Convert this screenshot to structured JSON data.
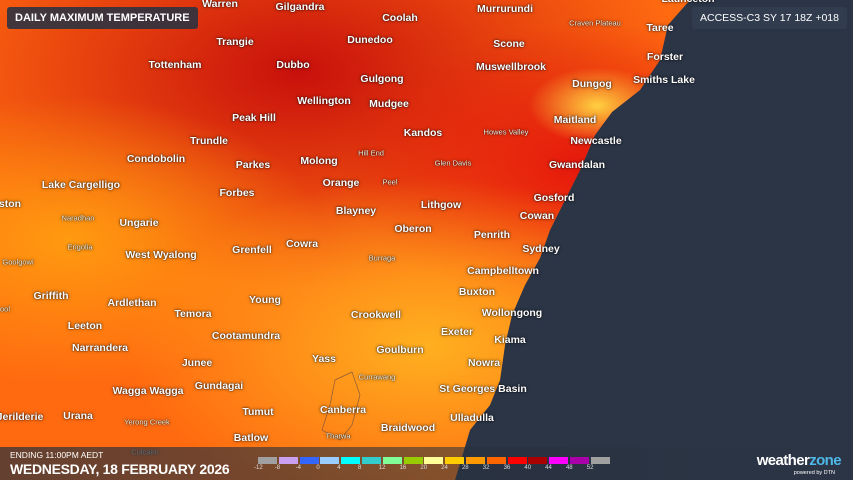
{
  "title": "DAILY MAXIMUM TEMPERATURE",
  "model_run": "ACCESS-C3 SY 17 18Z +018",
  "footer": {
    "ending": "ENDING 11:00PM AEDT",
    "date": "WEDNESDAY, 18 FEBRUARY 2026",
    "brand_main": "weather",
    "brand_accent": "zone",
    "brand_powered": "powered by DTN"
  },
  "legend": {
    "unit": "°C",
    "labels": [
      "-12",
      "-8",
      "-4",
      "0",
      "4",
      "8",
      "12",
      "16",
      "20",
      "24",
      "28",
      "32",
      "36",
      "40",
      "44",
      "48",
      "52"
    ],
    "colors": [
      "#a0a0a0",
      "#c9a0f0",
      "#3366ff",
      "#99ccff",
      "#00ffff",
      "#33cccc",
      "#80ff99",
      "#99cc00",
      "#ffff99",
      "#ffcc00",
      "#ff9900",
      "#ff6600",
      "#ff0000",
      "#aa0000",
      "#ff00ff",
      "#aa00aa",
      "#a0a0a0"
    ]
  },
  "colors": {
    "ocean": "#2b3546",
    "land_hot": "#e8200c",
    "land_warm": "#ff8a10"
  },
  "places": [
    "Warren",
    "Gilgandra",
    "Coolah",
    "Murrurundi",
    "Craven Plateau",
    "Taree",
    "Launceton",
    "Trangie",
    "Dunedoo",
    "Scone",
    "Forster",
    "Tottenham",
    "Dubbo",
    "Gulgong",
    "Muswellbrook",
    "Dungog",
    "Smiths Lake",
    "Wellington",
    "Mudgee",
    "Peak Hill",
    "Maitland",
    "Kandos",
    "Howes Valley",
    "Newcastle",
    "Trundle",
    "Hill End",
    "Glen Davis",
    "Condobolin",
    "Parkes",
    "Molong",
    "Gwandalan",
    "Orange",
    "Peel",
    "Lake Cargelligo",
    "Forbes",
    "Gosford",
    "ston",
    "Blayney",
    "Lithgow",
    "Naradhan",
    "Ungarie",
    "Cowan",
    "Oberon",
    "Penrith",
    "Erigolia",
    "Grenfell",
    "Cowra",
    "Sydney",
    "West Wyalong",
    "Burraga",
    "Goolgowi",
    "Campbelltown",
    "Griffith",
    "Young",
    "Buxton",
    "Ardlethan",
    "Temora",
    "Crookwell",
    "Wollongong",
    "Leeton",
    "Cootamundra",
    "Exeter",
    "Kiama",
    "Narrandera",
    "Goulburn",
    "Junee",
    "Yass",
    "Nowra",
    "Currawang",
    "Wagga Wagga",
    "Gundagai",
    "St Georges Basin",
    "Canberra",
    "Tumut",
    "Urana",
    "Jerilderie",
    "Yerong Creek",
    "Ulladulla",
    "Braidwood",
    "Tharwa",
    "Batlow",
    "Culcairn",
    "ool"
  ]
}
